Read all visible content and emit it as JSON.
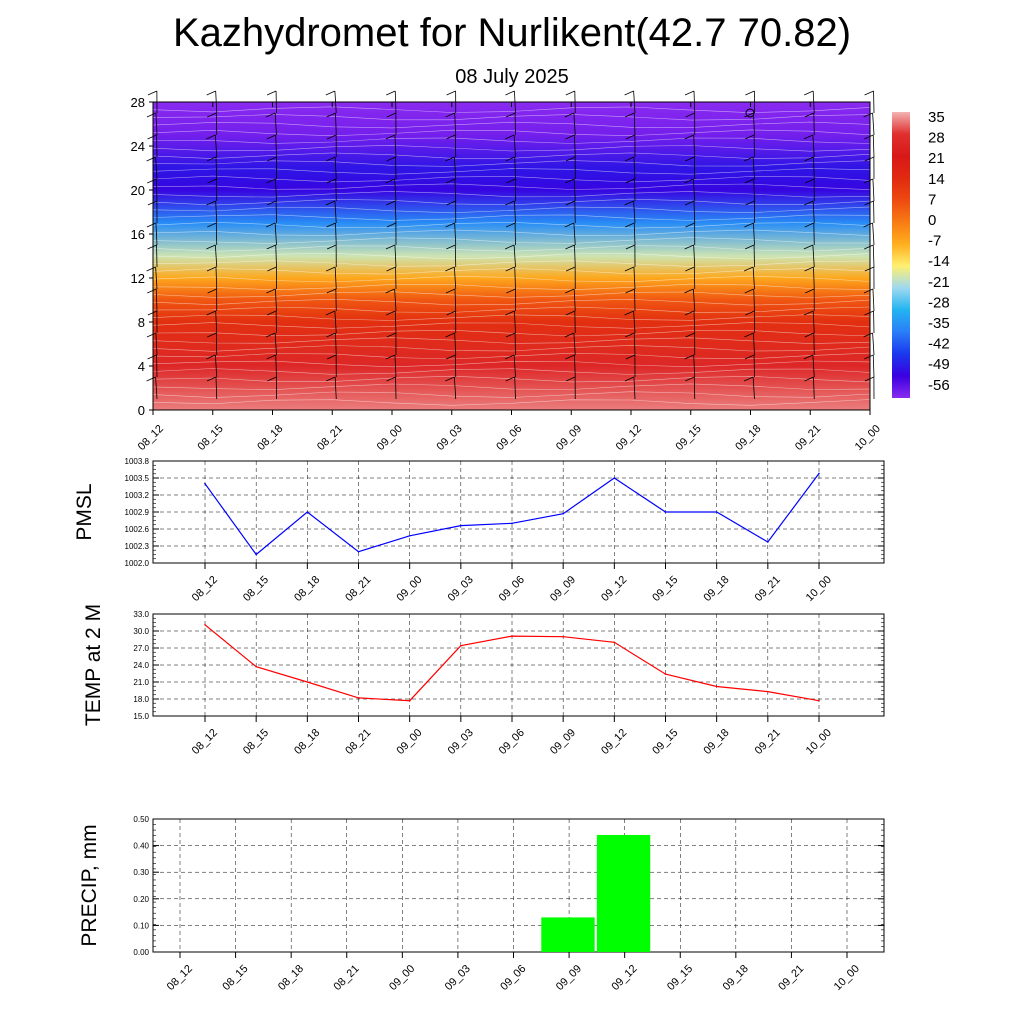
{
  "header": {
    "title": "Kazhydromet for Nurlikent(42.7 70.82)",
    "subtitle": "08 July 2025"
  },
  "colors": {
    "pmsl_line": "#0000ff",
    "temp_line": "#ff0000",
    "precip_bar": "#00ff00",
    "grid": "#000000"
  },
  "chart_data": [
    {
      "type": "heatmap",
      "title": "",
      "categories": [
        "08_12",
        "08_15",
        "08_18",
        "08_21",
        "09_00",
        "09_03",
        "09_06",
        "09_09",
        "09_12",
        "09_15",
        "09_18",
        "09_21",
        "10_00"
      ],
      "ylim": [
        0,
        28
      ],
      "y_ticks": [
        0,
        4,
        8,
        12,
        16,
        20,
        24,
        28
      ],
      "colorbar": {
        "labels": [
          "35",
          "28",
          "21",
          "14",
          "7",
          "0",
          "-7",
          "-14",
          "-21",
          "-28",
          "-35",
          "-42",
          "-49",
          "-56"
        ],
        "colors": [
          "#f3b3b3",
          "#e03030",
          "#d81818",
          "#e02a10",
          "#ee4a10",
          "#f87b14",
          "#ffae1e",
          "#fff070",
          "#9fd9f0",
          "#22b4f0",
          "#2a7ef8",
          "#1a38ee",
          "#3a00e0",
          "#8a2af0"
        ]
      },
      "temperature_by_height": [
        {
          "height": 0,
          "value": 32
        },
        {
          "height": 4,
          "value": 25
        },
        {
          "height": 8,
          "value": 12
        },
        {
          "height": 10,
          "value": 4
        },
        {
          "height": 12,
          "value": -8
        },
        {
          "height": 14,
          "value": -20
        },
        {
          "height": 17,
          "value": -36
        },
        {
          "height": 20,
          "value": -52
        },
        {
          "height": 22,
          "value": -50
        },
        {
          "height": 25,
          "value": -58
        },
        {
          "height": 28,
          "value": -60
        }
      ]
    },
    {
      "type": "line",
      "ylabel": "PMSL",
      "categories": [
        "08_12",
        "08_15",
        "08_18",
        "08_21",
        "09_00",
        "09_03",
        "09_06",
        "09_09",
        "09_12",
        "09_15",
        "09_18",
        "09_21",
        "10_00"
      ],
      "y_ticks": [
        "1002.0",
        "1002.3",
        "1002.6",
        "1002.9",
        "1003.2",
        "1003.5",
        "1003.8"
      ],
      "ylim": [
        1002.0,
        1003.8
      ],
      "series": [
        {
          "values": [
            1003.4,
            1002.15,
            1002.9,
            1002.2,
            1002.48,
            1002.66,
            1002.7,
            1002.87,
            1003.5,
            1002.9,
            1002.9,
            1002.37,
            1003.58
          ]
        }
      ]
    },
    {
      "type": "line",
      "ylabel": "TEMP at 2 M",
      "categories": [
        "08_12",
        "08_15",
        "08_18",
        "08_21",
        "09_00",
        "09_03",
        "09_06",
        "09_09",
        "09_12",
        "09_15",
        "09_18",
        "09_21",
        "10_00"
      ],
      "y_ticks": [
        "15.0",
        "18.0",
        "21.0",
        "24.0",
        "27.0",
        "30.0",
        "33.0"
      ],
      "ylim": [
        15.0,
        33.0
      ],
      "series": [
        {
          "values": [
            31.1,
            23.7,
            21.0,
            18.2,
            17.7,
            27.4,
            29.1,
            29.0,
            28.0,
            22.4,
            20.2,
            19.3,
            17.7
          ]
        }
      ]
    },
    {
      "type": "bar",
      "ylabel": "PRECIP, mm",
      "categories": [
        "08_12",
        "08_15",
        "08_18",
        "08_21",
        "09_00",
        "09_03",
        "09_06",
        "09_09",
        "09_12",
        "09_15",
        "09_18",
        "09_21",
        "10_00"
      ],
      "y_ticks": [
        "0.00",
        "0.10",
        "0.20",
        "0.30",
        "0.40",
        "0.50"
      ],
      "ylim": [
        0.0,
        0.5
      ],
      "values": [
        0,
        0,
        0,
        0,
        0,
        0,
        0,
        0.13,
        0.44,
        0,
        0,
        0,
        0
      ]
    }
  ]
}
